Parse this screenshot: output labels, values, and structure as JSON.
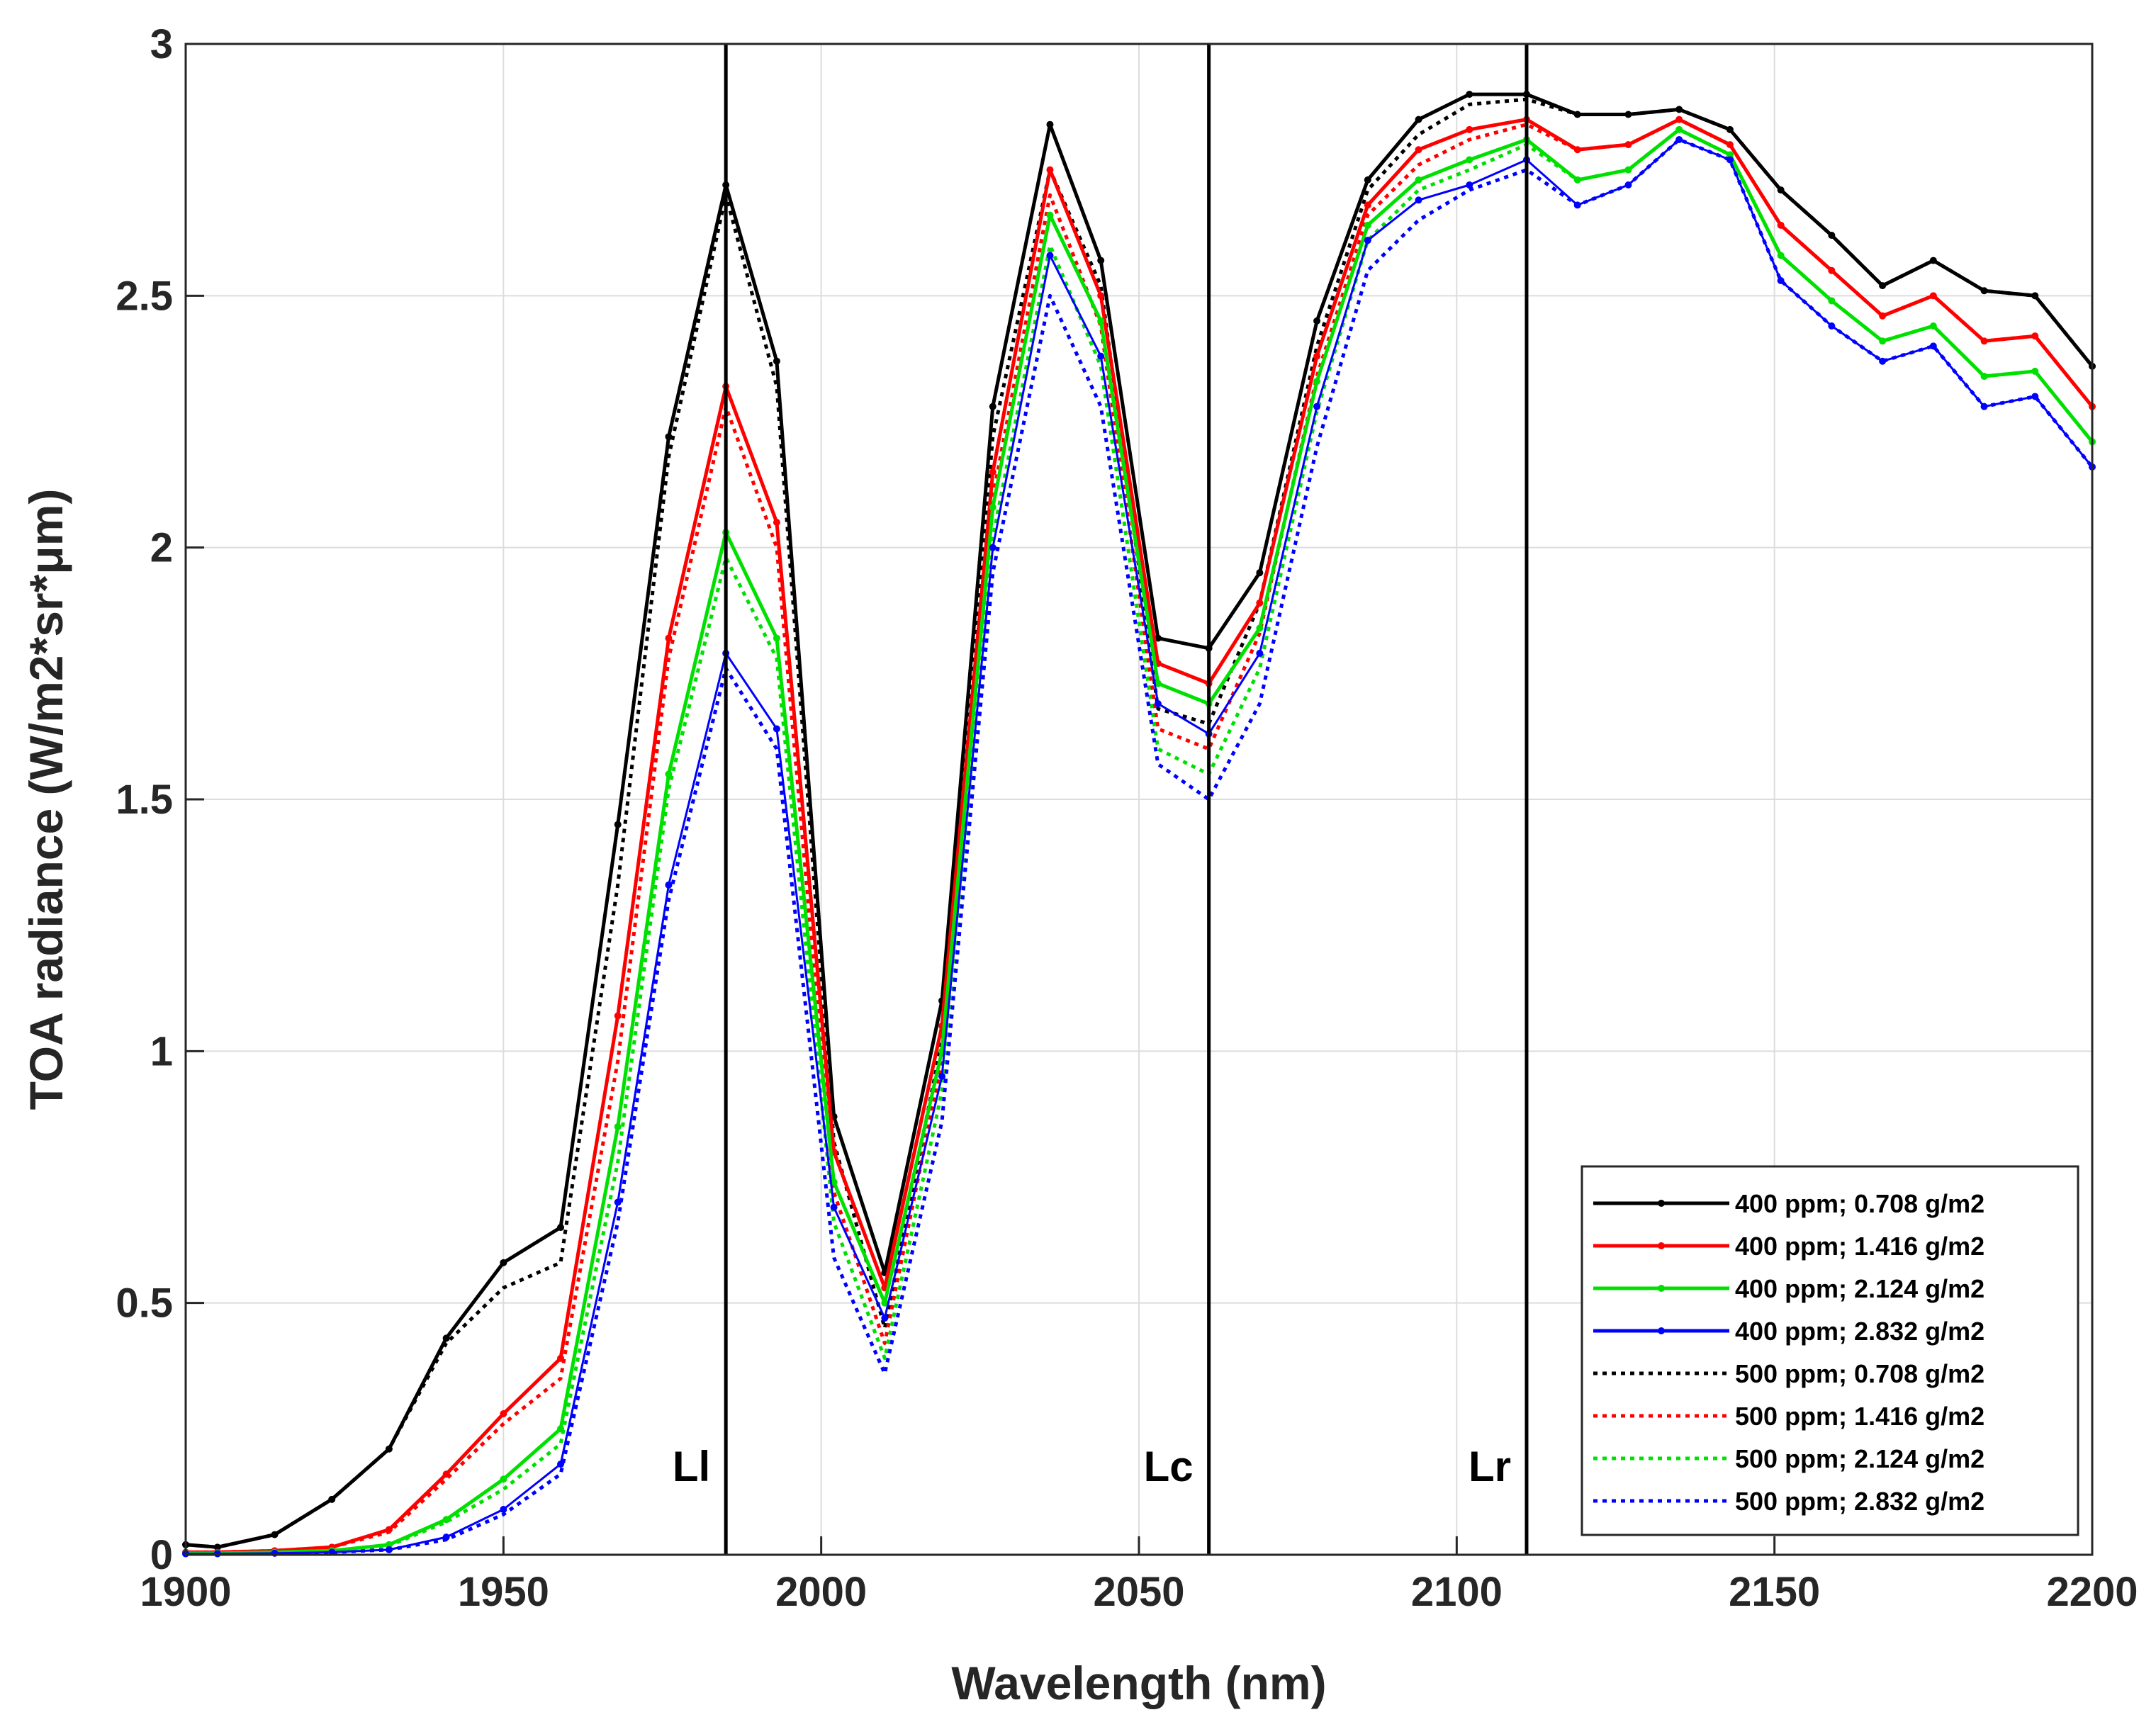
{
  "chart_data": {
    "type": "line",
    "title": "",
    "xlabel": "Wavelength (nm)",
    "ylabel": "TOA radiance (W/m2*sr*μm)",
    "xlim": [
      1900,
      2200
    ],
    "ylim": [
      0,
      3
    ],
    "xticks": [
      "1900",
      "1950",
      "2000",
      "2050",
      "2100",
      "2150",
      "2200"
    ],
    "yticks": [
      "0",
      "0.5",
      "1",
      "1.5",
      "2",
      "2.5",
      "3"
    ],
    "grid": true,
    "legend_position": "bottom-right",
    "x": [
      1900,
      1905,
      1914,
      1923,
      1932,
      1941,
      1950,
      1959,
      1968,
      1976,
      1985,
      1993,
      2002,
      2010,
      2019,
      2027,
      2036,
      2044,
      2053,
      2061,
      2069,
      2078,
      2086,
      2094,
      2102,
      2111,
      2119,
      2127,
      2135,
      2143,
      2151,
      2159,
      2167,
      2175,
      2183,
      2191,
      2200
    ],
    "series": [
      {
        "name": "400 ppm; 0.708 g/m2",
        "color": "#000000",
        "style": "solid",
        "values": [
          0.02,
          0.015,
          0.04,
          0.11,
          0.21,
          0.43,
          0.58,
          0.65,
          1.45,
          2.22,
          2.72,
          2.37,
          0.87,
          0.56,
          1.1,
          2.28,
          2.84,
          2.57,
          1.82,
          1.8,
          1.95,
          2.45,
          2.73,
          2.85,
          2.9,
          2.9,
          2.86,
          2.86,
          2.87,
          2.83,
          2.71,
          2.62,
          2.52,
          2.57,
          2.51,
          2.5,
          2.36
        ]
      },
      {
        "name": "400 ppm; 1.416 g/m2",
        "color": "#ff0000",
        "style": "solid",
        "values": [
          0.005,
          0.005,
          0.008,
          0.015,
          0.05,
          0.16,
          0.28,
          0.39,
          1.07,
          1.82,
          2.32,
          2.05,
          0.8,
          0.53,
          1.05,
          2.15,
          2.75,
          2.5,
          1.77,
          1.73,
          1.89,
          2.38,
          2.68,
          2.79,
          2.83,
          2.85,
          2.79,
          2.8,
          2.85,
          2.8,
          2.64,
          2.55,
          2.46,
          2.5,
          2.41,
          2.42,
          2.28
        ]
      },
      {
        "name": "400 ppm; 2.124 g/m2",
        "color": "#00e000",
        "style": "solid",
        "values": [
          0.003,
          0.003,
          0.005,
          0.008,
          0.02,
          0.07,
          0.15,
          0.25,
          0.85,
          1.55,
          2.03,
          1.82,
          0.74,
          0.5,
          1.0,
          2.08,
          2.66,
          2.45,
          1.73,
          1.69,
          1.84,
          2.33,
          2.64,
          2.73,
          2.77,
          2.81,
          2.73,
          2.75,
          2.83,
          2.78,
          2.58,
          2.49,
          2.41,
          2.44,
          2.34,
          2.35,
          2.21
        ]
      },
      {
        "name": "400 ppm; 2.832 g/m2",
        "color": "#0000ff",
        "style": "solid",
        "values": [
          0.002,
          0.002,
          0.003,
          0.005,
          0.01,
          0.035,
          0.09,
          0.18,
          0.7,
          1.33,
          1.79,
          1.64,
          0.69,
          0.47,
          0.95,
          2.0,
          2.58,
          2.38,
          1.69,
          1.63,
          1.79,
          2.28,
          2.61,
          2.69,
          2.72,
          2.77,
          2.68,
          2.72,
          2.81,
          2.77,
          2.53,
          2.44,
          2.37,
          2.4,
          2.28,
          2.3,
          2.16
        ]
      },
      {
        "name": "500 ppm; 0.708 g/m2",
        "color": "#000000",
        "style": "dotted",
        "values": [
          0.02,
          0.015,
          0.04,
          0.11,
          0.21,
          0.42,
          0.53,
          0.58,
          1.33,
          2.18,
          2.7,
          2.32,
          0.82,
          0.45,
          1.02,
          2.22,
          2.75,
          2.52,
          1.68,
          1.65,
          1.89,
          2.4,
          2.71,
          2.82,
          2.88,
          2.89,
          2.86,
          2.86,
          2.87,
          2.83,
          2.71,
          2.62,
          2.52,
          2.57,
          2.51,
          2.5,
          2.36
        ]
      },
      {
        "name": "500 ppm; 1.416 g/m2",
        "color": "#ff0000",
        "style": "dotted",
        "values": [
          0.005,
          0.005,
          0.008,
          0.015,
          0.045,
          0.15,
          0.26,
          0.35,
          0.98,
          1.78,
          2.28,
          2.0,
          0.72,
          0.42,
          0.98,
          2.1,
          2.7,
          2.44,
          1.64,
          1.6,
          1.83,
          2.34,
          2.66,
          2.76,
          2.81,
          2.84,
          2.79,
          2.8,
          2.85,
          2.8,
          2.64,
          2.55,
          2.46,
          2.5,
          2.41,
          2.42,
          2.28
        ]
      },
      {
        "name": "500 ppm; 2.124 g/m2",
        "color": "#00e000",
        "style": "dotted",
        "values": [
          0.003,
          0.003,
          0.005,
          0.008,
          0.018,
          0.065,
          0.13,
          0.22,
          0.78,
          1.52,
          1.98,
          1.78,
          0.66,
          0.39,
          0.92,
          2.02,
          2.6,
          2.36,
          1.6,
          1.55,
          1.76,
          2.27,
          2.61,
          2.71,
          2.75,
          2.8,
          2.73,
          2.75,
          2.83,
          2.78,
          2.58,
          2.49,
          2.41,
          2.44,
          2.34,
          2.35,
          2.21
        ]
      },
      {
        "name": "500 ppm; 2.832 g/m2",
        "color": "#0000ff",
        "style": "dotted",
        "values": [
          0.002,
          0.002,
          0.003,
          0.005,
          0.01,
          0.03,
          0.08,
          0.16,
          0.66,
          1.3,
          1.76,
          1.6,
          0.59,
          0.36,
          0.86,
          1.95,
          2.5,
          2.28,
          1.57,
          1.5,
          1.69,
          2.2,
          2.55,
          2.65,
          2.71,
          2.75,
          2.68,
          2.72,
          2.81,
          2.77,
          2.53,
          2.44,
          2.37,
          2.4,
          2.28,
          2.3,
          2.16
        ]
      }
    ],
    "reference_lines": [
      {
        "label": "Ll",
        "x": 1985
      },
      {
        "label": "Lc",
        "x": 2061
      },
      {
        "label": "Lr",
        "x": 2111
      }
    ]
  }
}
